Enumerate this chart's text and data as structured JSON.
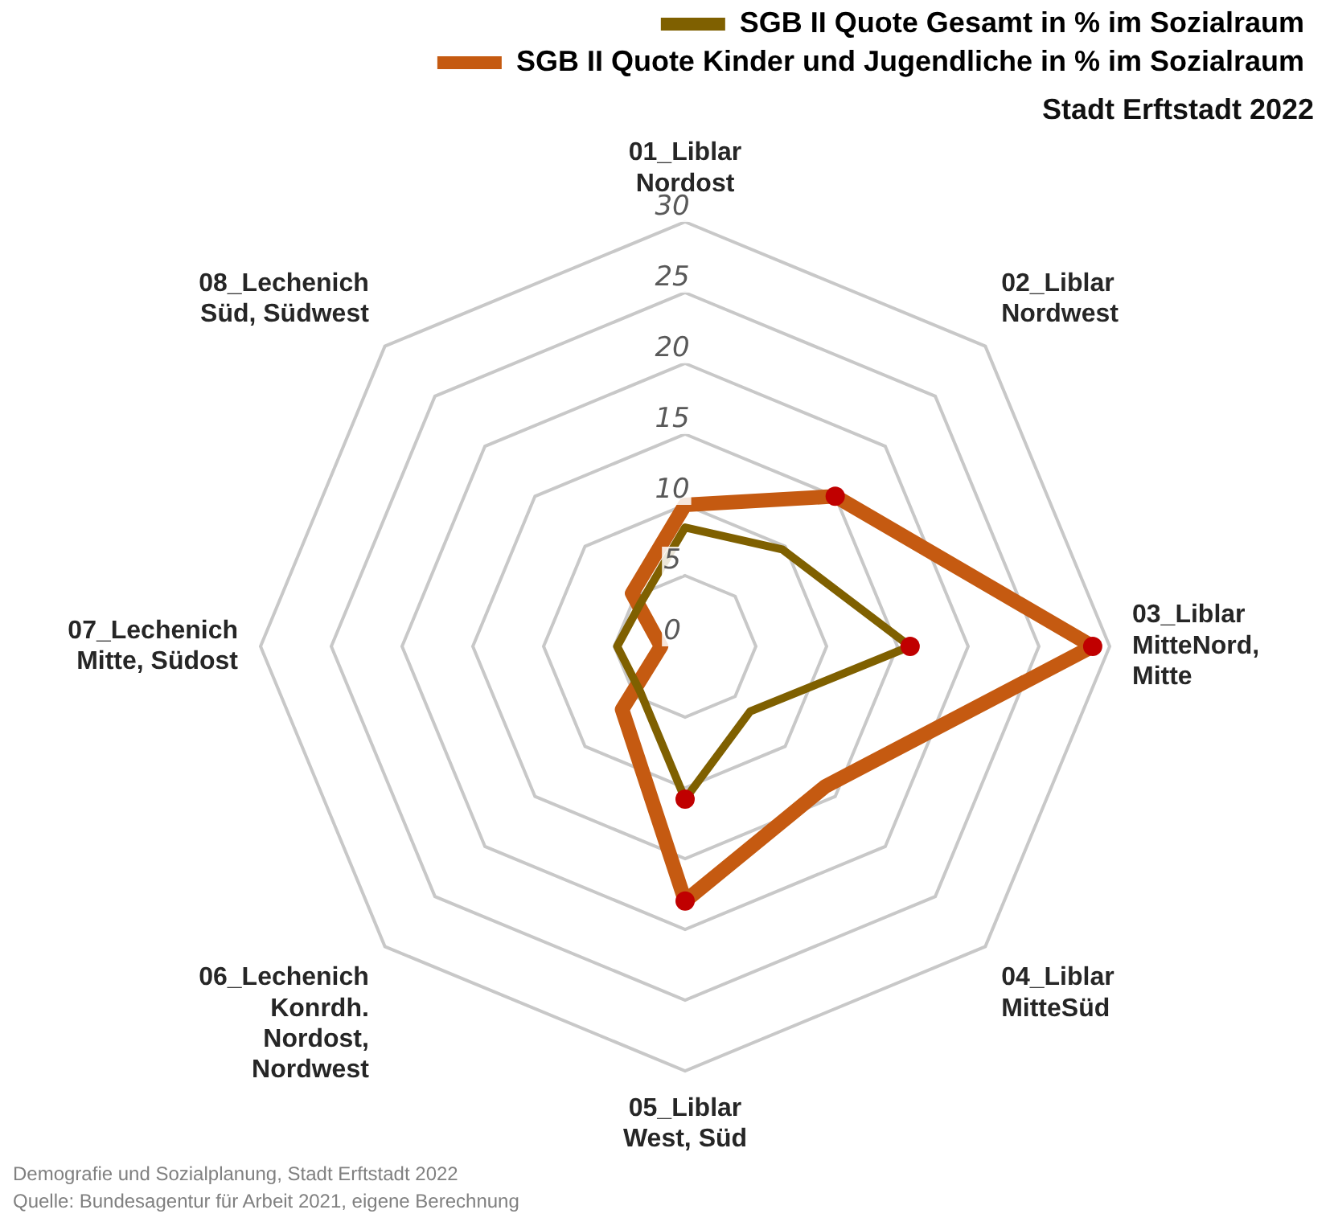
{
  "chart_data": {
    "type": "radar",
    "title": "Stadt Erftstadt 2022",
    "categories": [
      "01_Liblar\nNordost",
      "02_Liblar\nNordwest",
      "03_Liblar\nMitteNord,\nMitte",
      "04_Liblar\nMitteSüd",
      "05_Liblar\nWest, Süd",
      "06_Lechenich\nKonrdh.\nNordost,\nNordwest",
      "07_Lechenich\nMitte, Südost",
      "08_Lechenich\nSüd, Südwest"
    ],
    "series": [
      {
        "name": "SGB II Quote Gesamt in % im Sozialraum",
        "color": "#7f6000",
        "values": [
          8.4,
          9.7,
          15.9,
          6.5,
          10.8,
          4.5,
          4.8,
          4.4
        ],
        "colors": [
          null,
          null,
          "#c00000",
          null,
          "#c00000",
          null,
          null,
          null
        ]
      },
      {
        "name": "SGB II Quote Kinder und Jugendliche in % im Sozialraum",
        "color": "#c55a11",
        "values": [
          10,
          15,
          28.8,
          14,
          18,
          6.3,
          1.7,
          5.3
        ],
        "colors": [
          null,
          "#c00000",
          "#c00000",
          null,
          "#c00000",
          null,
          null,
          null
        ]
      }
    ],
    "ylim": [
      0,
      30
    ],
    "yticks": [
      0,
      5,
      10,
      15,
      20,
      25,
      30
    ],
    "grid": true,
    "legend": "top right",
    "marker": "circle",
    "annotations": [
      "Demografie und Sozialplanung, Stadt Erftstadt 2022",
      "Quelle: Bundesagentur für Arbeit 2021, eigene Berechnung"
    ]
  }
}
